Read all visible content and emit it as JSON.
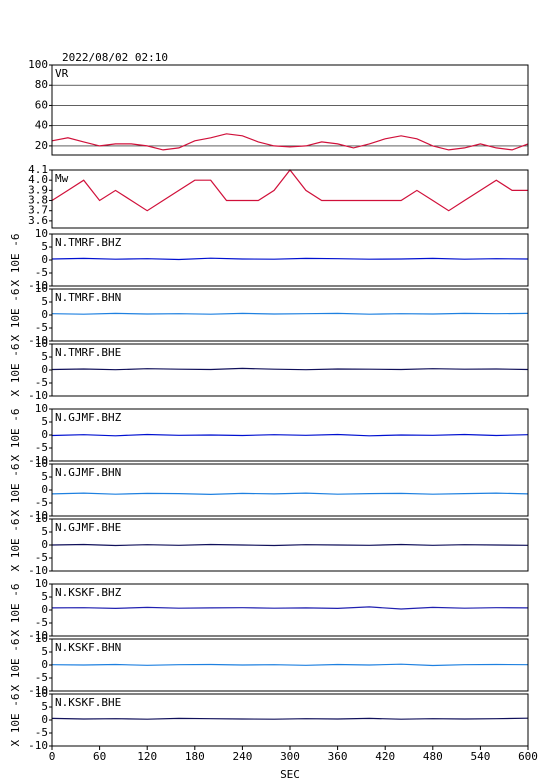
{
  "chart_data": [
    {
      "type": "line",
      "title": "2022/08/02 02:10",
      "ylim": [
        11,
        100
      ],
      "yticks": [
        20,
        40,
        60,
        80,
        100
      ],
      "grid": true,
      "xlim": [
        0,
        600
      ],
      "x": [
        0,
        20,
        40,
        60,
        80,
        100,
        120,
        140,
        160,
        180,
        200,
        220,
        240,
        260,
        280,
        300,
        320,
        340,
        360,
        380,
        400,
        420,
        440,
        460,
        480,
        500,
        520,
        540,
        560,
        580,
        600
      ],
      "series": [
        {
          "name": "VR",
          "color": "#d0103a",
          "values": [
            25,
            28,
            24,
            20,
            22,
            22,
            20,
            16,
            18,
            25,
            28,
            32,
            30,
            24,
            20,
            19,
            20,
            24,
            22,
            18,
            22,
            27,
            30,
            27,
            20,
            16,
            18,
            22,
            18,
            16,
            22
          ]
        }
      ]
    },
    {
      "type": "line",
      "ylim": [
        3.53,
        4.1
      ],
      "yticks": [
        {
          "value": 3.6,
          "label": "3.6"
        },
        {
          "value": 3.7,
          "label": "3.7"
        },
        {
          "value": 3.8,
          "label": "3.8"
        },
        {
          "value": 3.9,
          "label": "3.9"
        },
        {
          "value": 4,
          "label": "4.0"
        },
        {
          "value": 4.1,
          "label": "4.1"
        }
      ],
      "grid": false,
      "xlim": [
        0,
        600
      ],
      "x": [
        0,
        20,
        40,
        60,
        80,
        100,
        120,
        140,
        160,
        180,
        200,
        220,
        240,
        260,
        280,
        300,
        320,
        340,
        360,
        380,
        400,
        420,
        440,
        460,
        480,
        500,
        520,
        540,
        560,
        580,
        600
      ],
      "series": [
        {
          "name": "Mw",
          "color": "#d0103a",
          "values": [
            3.8,
            3.9,
            4.0,
            3.8,
            3.9,
            3.8,
            3.7,
            3.8,
            3.9,
            4.0,
            4.0,
            3.8,
            3.8,
            3.8,
            3.9,
            4.1,
            3.9,
            3.8,
            3.8,
            3.8,
            3.8,
            3.8,
            3.8,
            3.9,
            3.8,
            3.7,
            3.8,
            3.9,
            4.0,
            3.9,
            3.9
          ]
        }
      ]
    },
    {
      "type": "line",
      "ylabel": "X 10E -6",
      "ylim": [
        -10,
        10
      ],
      "yticks": [
        -10,
        -5,
        0,
        5,
        10
      ],
      "xlim": [
        0,
        600
      ],
      "x": [
        0,
        40,
        80,
        120,
        160,
        200,
        240,
        280,
        320,
        360,
        400,
        440,
        480,
        520,
        560,
        600
      ],
      "series": [
        {
          "name": "N.TMRF.BHZ",
          "color": "#0010d0",
          "values": [
            0.4,
            0.6,
            0.3,
            0.5,
            0.2,
            0.7,
            0.4,
            0.3,
            0.6,
            0.5,
            0.3,
            0.4,
            0.6,
            0.3,
            0.5,
            0.4
          ]
        }
      ]
    },
    {
      "type": "line",
      "ylabel": "X 10E -6",
      "ylim": [
        -10,
        10
      ],
      "yticks": [
        -10,
        -5,
        0,
        5,
        10
      ],
      "xlim": [
        0,
        600
      ],
      "x": [
        0,
        40,
        80,
        120,
        160,
        200,
        240,
        280,
        320,
        360,
        400,
        440,
        480,
        520,
        560,
        600
      ],
      "series": [
        {
          "name": "N.TMRF.BHN",
          "color": "#1e80e0",
          "values": [
            0.5,
            0.3,
            0.6,
            0.4,
            0.5,
            0.3,
            0.6,
            0.4,
            0.5,
            0.6,
            0.3,
            0.5,
            0.4,
            0.6,
            0.5,
            0.6
          ]
        }
      ]
    },
    {
      "type": "line",
      "ylabel": "X 10E -6",
      "ylim": [
        -10,
        10
      ],
      "yticks": [
        -10,
        -5,
        0,
        5,
        10
      ],
      "xlim": [
        0,
        600
      ],
      "x": [
        0,
        40,
        80,
        120,
        160,
        200,
        240,
        280,
        320,
        360,
        400,
        440,
        480,
        520,
        560,
        600
      ],
      "series": [
        {
          "name": "N.TMRF.BHE",
          "color": "#10105a",
          "values": [
            0.2,
            0.4,
            0.1,
            0.5,
            0.3,
            0.2,
            0.6,
            0.3,
            0.1,
            0.4,
            0.3,
            0.2,
            0.5,
            0.3,
            0.4,
            0.2
          ]
        }
      ]
    },
    {
      "type": "line",
      "ylabel": "X 10E -6",
      "ylim": [
        -10,
        10
      ],
      "yticks": [
        -10,
        -5,
        0,
        5,
        10
      ],
      "xlim": [
        0,
        600
      ],
      "x": [
        0,
        40,
        80,
        120,
        160,
        200,
        240,
        280,
        320,
        360,
        400,
        440,
        480,
        520,
        560,
        600
      ],
      "series": [
        {
          "name": "N.GJMF.BHZ",
          "color": "#0010d0",
          "values": [
            -0.2,
            0.1,
            -0.3,
            0.2,
            -0.1,
            0.0,
            -0.2,
            0.1,
            -0.1,
            0.2,
            -0.3,
            0.0,
            -0.1,
            0.2,
            -0.2,
            0.1
          ]
        }
      ]
    },
    {
      "type": "line",
      "ylabel": "X 10E -6",
      "ylim": [
        -10,
        10
      ],
      "yticks": [
        -10,
        -5,
        0,
        5,
        10
      ],
      "xlim": [
        0,
        600
      ],
      "x": [
        0,
        40,
        80,
        120,
        160,
        200,
        240,
        280,
        320,
        360,
        400,
        440,
        480,
        520,
        560,
        600
      ],
      "series": [
        {
          "name": "N.GJMF.BHN",
          "color": "#1e80e0",
          "values": [
            -1.5,
            -1.2,
            -1.6,
            -1.3,
            -1.4,
            -1.7,
            -1.3,
            -1.5,
            -1.2,
            -1.6,
            -1.4,
            -1.3,
            -1.6,
            -1.4,
            -1.2,
            -1.5
          ]
        }
      ]
    },
    {
      "type": "line",
      "ylabel": "X 10E -6",
      "ylim": [
        -10,
        10
      ],
      "yticks": [
        -10,
        -5,
        0,
        5,
        10
      ],
      "xlim": [
        0,
        600
      ],
      "x": [
        0,
        40,
        80,
        120,
        160,
        200,
        240,
        280,
        320,
        360,
        400,
        440,
        480,
        520,
        560,
        600
      ],
      "series": [
        {
          "name": "N.GJMF.BHE",
          "color": "#10105a",
          "values": [
            0.0,
            0.2,
            -0.2,
            0.1,
            -0.1,
            0.2,
            0.0,
            -0.2,
            0.1,
            0.0,
            -0.1,
            0.2,
            -0.1,
            0.1,
            0.0,
            -0.1
          ]
        }
      ]
    },
    {
      "type": "line",
      "ylabel": "X 10E -6",
      "ylim": [
        -10,
        10
      ],
      "yticks": [
        -10,
        -5,
        0,
        5,
        10
      ],
      "xlim": [
        0,
        600
      ],
      "x": [
        0,
        40,
        80,
        120,
        160,
        200,
        240,
        280,
        320,
        360,
        400,
        440,
        480,
        520,
        560,
        600
      ],
      "series": [
        {
          "name": "N.KSKF.BHZ",
          "color": "#2020b0",
          "values": [
            0.8,
            0.9,
            0.6,
            1.0,
            0.7,
            0.8,
            0.9,
            0.7,
            0.8,
            0.6,
            1.2,
            0.4,
            1.0,
            0.7,
            0.9,
            0.8
          ]
        }
      ]
    },
    {
      "type": "line",
      "ylabel": "X 10E -6",
      "ylim": [
        -10,
        10
      ],
      "yticks": [
        -10,
        -5,
        0,
        5,
        10
      ],
      "xlim": [
        0,
        600
      ],
      "x": [
        0,
        40,
        80,
        120,
        160,
        200,
        240,
        280,
        320,
        360,
        400,
        440,
        480,
        520,
        560,
        600
      ],
      "series": [
        {
          "name": "N.KSKF.BHN",
          "color": "#1e80e0",
          "values": [
            0.1,
            0.0,
            0.2,
            -0.1,
            0.1,
            0.2,
            0.0,
            0.1,
            -0.1,
            0.2,
            0.0,
            0.3,
            -0.2,
            0.1,
            0.2,
            0.1
          ]
        }
      ]
    },
    {
      "type": "line",
      "ylabel": "X 10E -6",
      "xlabel": "SEC",
      "ylim": [
        -10,
        10
      ],
      "yticks": [
        -10,
        -5,
        0,
        5,
        10
      ],
      "xlim": [
        0,
        600
      ],
      "xticks": [
        0,
        60,
        120,
        180,
        240,
        300,
        360,
        420,
        480,
        540,
        600
      ],
      "x": [
        0,
        40,
        80,
        120,
        160,
        200,
        240,
        280,
        320,
        360,
        400,
        440,
        480,
        520,
        560,
        600
      ],
      "series": [
        {
          "name": "N.KSKF.BHE",
          "color": "#10105a",
          "values": [
            0.6,
            0.4,
            0.5,
            0.3,
            0.6,
            0.5,
            0.4,
            0.3,
            0.5,
            0.4,
            0.6,
            0.3,
            0.5,
            0.4,
            0.5,
            0.7
          ]
        }
      ]
    }
  ]
}
